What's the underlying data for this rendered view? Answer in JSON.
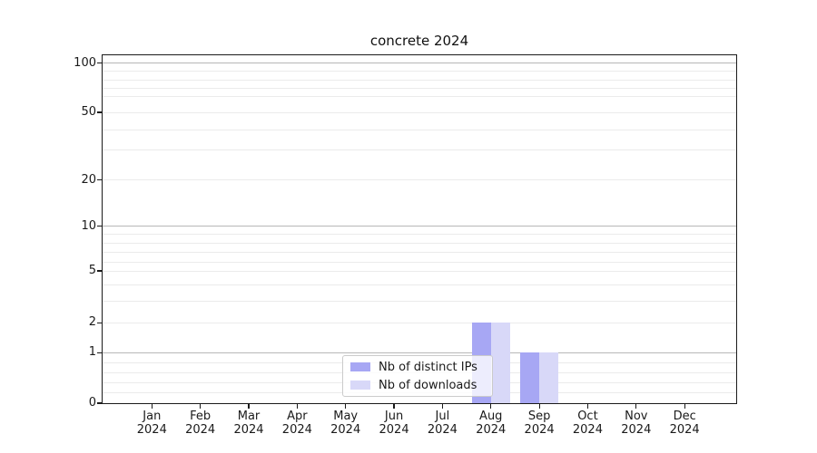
{
  "title": "concrete 2024",
  "chart_data": {
    "type": "bar",
    "title": "concrete 2024",
    "categories": [
      "Jan",
      "Feb",
      "Mar",
      "Apr",
      "May",
      "Jun",
      "Jul",
      "Aug",
      "Sep",
      "Oct",
      "Nov",
      "Dec"
    ],
    "year": "2024",
    "series": [
      {
        "name": "Nb of distinct IPs",
        "color": "#a7a7f4",
        "values": [
          0,
          0,
          0,
          0,
          0,
          0,
          0,
          2,
          1,
          0,
          0,
          0
        ]
      },
      {
        "name": "Nb of downloads",
        "color": "#d8d8f8",
        "values": [
          0,
          0,
          0,
          0,
          0,
          0,
          0,
          2,
          1,
          0,
          0,
          0
        ]
      }
    ],
    "y_ticks": [
      100,
      50,
      20,
      10,
      5,
      2,
      1,
      0
    ],
    "ylim": [
      0,
      113
    ],
    "yscale": "log",
    "grid": true,
    "legend_position": "lower center"
  }
}
